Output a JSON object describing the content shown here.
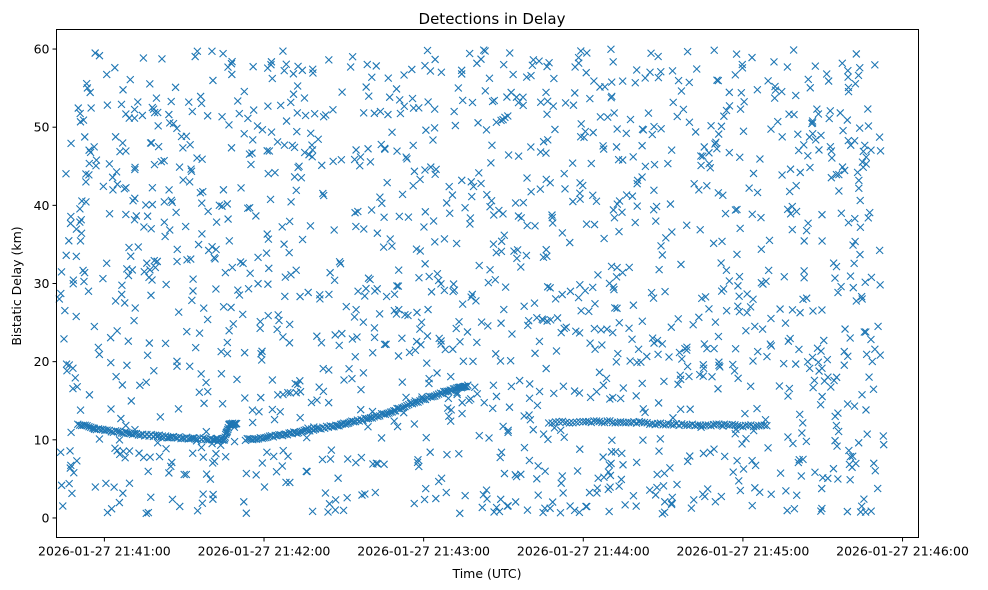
{
  "chart_data": {
    "type": "scatter",
    "title": "Detections in Delay",
    "xlabel": "Time (UTC)",
    "ylabel": "Bistatic Delay (km)",
    "x_tick_labels": [
      "2026-01-27 21:41:00",
      "2026-01-27 21:42:00",
      "2026-01-27 21:43:00",
      "2026-01-27 21:44:00",
      "2026-01-27 21:45:00",
      "2026-01-27 21:46:00"
    ],
    "x_ticks_seconds_since_2141": [
      0,
      60,
      120,
      180,
      240,
      300
    ],
    "y_ticks": [
      0,
      10,
      20,
      30,
      40,
      50,
      60
    ],
    "xlim_seconds_since_2141": [
      -18,
      306
    ],
    "ylim": [
      -2.5,
      62.5
    ],
    "marker": "x",
    "color": "#1f77b4",
    "grid": false,
    "legend": "none",
    "time_range": [
      "2026-01-27 21:40:43",
      "2026-01-27 21:45:53"
    ],
    "noise_delay_range_km": [
      0.5,
      60
    ],
    "approx_noise_points": 1500,
    "tracks": [
      {
        "x": [
          -10,
          -3,
          5,
          12,
          20,
          26,
          33,
          40,
          45,
          47,
          50
        ],
        "y": [
          12,
          11.4,
          11,
          10.7,
          10.5,
          10.3,
          10.2,
          10.1,
          10,
          12,
          12
        ]
      },
      {
        "x": [
          53,
          60,
          67,
          73,
          80,
          87,
          93,
          100,
          107,
          113,
          120,
          127,
          133,
          137
        ],
        "y": [
          10,
          10.3,
          10.6,
          11,
          11.4,
          11.8,
          12.3,
          12.8,
          13.5,
          14.3,
          15.2,
          16,
          16.6,
          17
        ]
      },
      {
        "x": [
          167,
          180,
          190,
          200,
          210,
          220,
          230,
          240,
          250
        ],
        "y": [
          12.2,
          12.3,
          12.3,
          12.2,
          12,
          11.9,
          11.9,
          11.8,
          11.8
        ]
      }
    ]
  }
}
